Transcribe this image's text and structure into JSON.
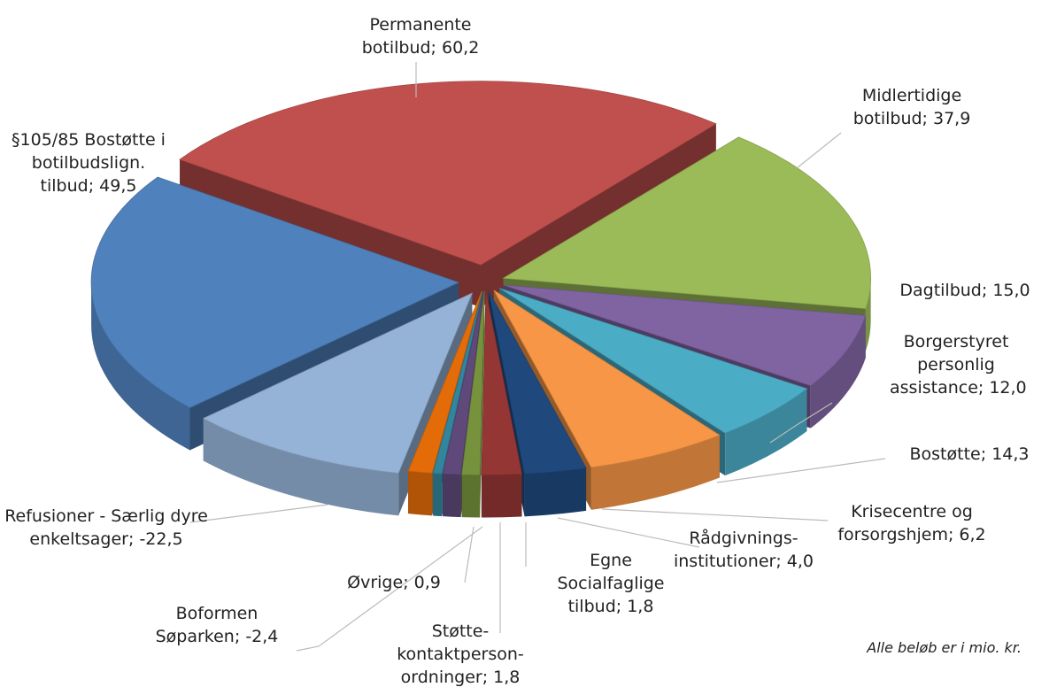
{
  "chart_data": {
    "type": "pie3d",
    "categories": [
      "Permanente botilbud",
      "Midlertidige botilbud",
      "Dagtilbud",
      "Borgerstyret personlig assistance",
      "Bostøtte",
      "Krisecentre og forsorgshjem",
      "Rådgivnings-institutioner",
      "Egne Socialfaglige tilbud",
      "Støtte-kontaktperson-ordninger",
      "Øvrige",
      "Boformen Søparken",
      "Refusioner - Særlig dyre enkeltsager",
      "§105/85 Bostøtte i botilbudslign. tilbud"
    ],
    "values": [
      60.2,
      37.9,
      15.0,
      12.0,
      14.3,
      6.2,
      4.0,
      1.8,
      1.8,
      0.9,
      -2.4,
      -22.5,
      49.5
    ],
    "value_labels": [
      "60,2",
      "37,9",
      "15,0",
      "12,0",
      "14,3",
      "6,2",
      "4,0",
      "1,8",
      "1,8",
      "0,9",
      "-2,4",
      "-22,5",
      "49,5"
    ],
    "label_separator": "; ",
    "colors": [
      "#c0504d",
      "#9bbb59",
      "#8064a2",
      "#4bacc6",
      "#f79646",
      "#1f497d",
      "#943634",
      "#76923c",
      "#5f497a",
      "#31859c",
      "#e36c09",
      "#95b3d7",
      "#4f81bd"
    ],
    "annotation": "Alle beløb er i mio. kr."
  }
}
